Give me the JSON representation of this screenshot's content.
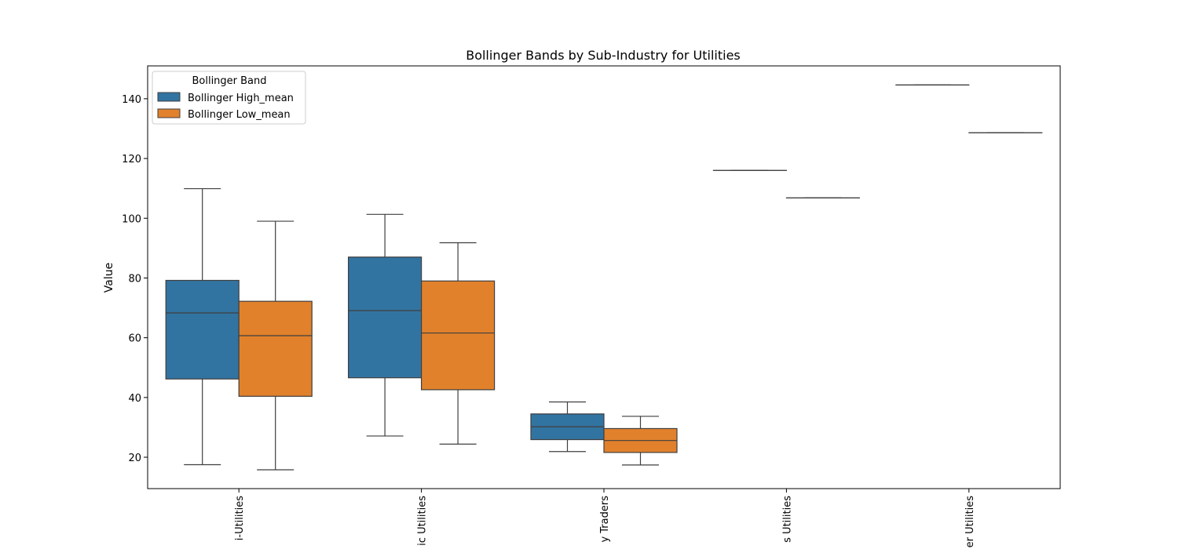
{
  "chart_data": {
    "type": "box",
    "title": "Bollinger Bands by Sub-Industry for Utilities",
    "xlabel": "",
    "ylabel": "Value",
    "ylim": [
      9.5,
      151
    ],
    "yticks": [
      20,
      40,
      60,
      80,
      100,
      120,
      140
    ],
    "grid": false,
    "legend": {
      "title": "Bollinger Band",
      "placement": "top-left"
    },
    "categories": [
      "Multi-Utilities",
      "Electric Utilities",
      "Independent Power Producers & Energy Traders",
      "Gas Utilities",
      "Water Utilities"
    ],
    "category_labels_visible": [
      "i-Utilities",
      "ic Utilities",
      "y Traders",
      "s Utilities",
      "er Utilities"
    ],
    "series": [
      {
        "name": "Bollinger High_mean",
        "color": "#3274a1",
        "boxes": [
          {
            "whisker_low": 17.5,
            "q1": 46.2,
            "median": 68.3,
            "q3": 79.2,
            "whisker_high": 109.9
          },
          {
            "whisker_low": 27.1,
            "q1": 46.6,
            "median": 69.1,
            "q3": 87.0,
            "whisker_high": 101.3
          },
          {
            "whisker_low": 21.9,
            "q1": 25.9,
            "median": 30.2,
            "q3": 34.5,
            "whisker_high": 38.5
          },
          {
            "whisker_low": 116.0,
            "q1": 116.0,
            "median": 116.0,
            "q3": 116.0,
            "whisker_high": 116.0
          },
          {
            "whisker_low": 144.6,
            "q1": 144.6,
            "median": 144.6,
            "q3": 144.6,
            "whisker_high": 144.6
          }
        ]
      },
      {
        "name": "Bollinger Low_mean",
        "color": "#e1812c",
        "boxes": [
          {
            "whisker_low": 15.8,
            "q1": 40.4,
            "median": 60.7,
            "q3": 72.2,
            "whisker_high": 99.0
          },
          {
            "whisker_low": 24.4,
            "q1": 42.6,
            "median": 61.6,
            "q3": 79.0,
            "whisker_high": 91.8
          },
          {
            "whisker_low": 17.4,
            "q1": 21.6,
            "median": 25.6,
            "q3": 29.6,
            "whisker_high": 33.7
          },
          {
            "whisker_low": 106.8,
            "q1": 106.8,
            "median": 106.8,
            "q3": 106.8,
            "whisker_high": 106.8
          },
          {
            "whisker_low": 128.6,
            "q1": 128.6,
            "median": 128.6,
            "q3": 128.6,
            "whisker_high": 128.6
          }
        ]
      }
    ]
  }
}
